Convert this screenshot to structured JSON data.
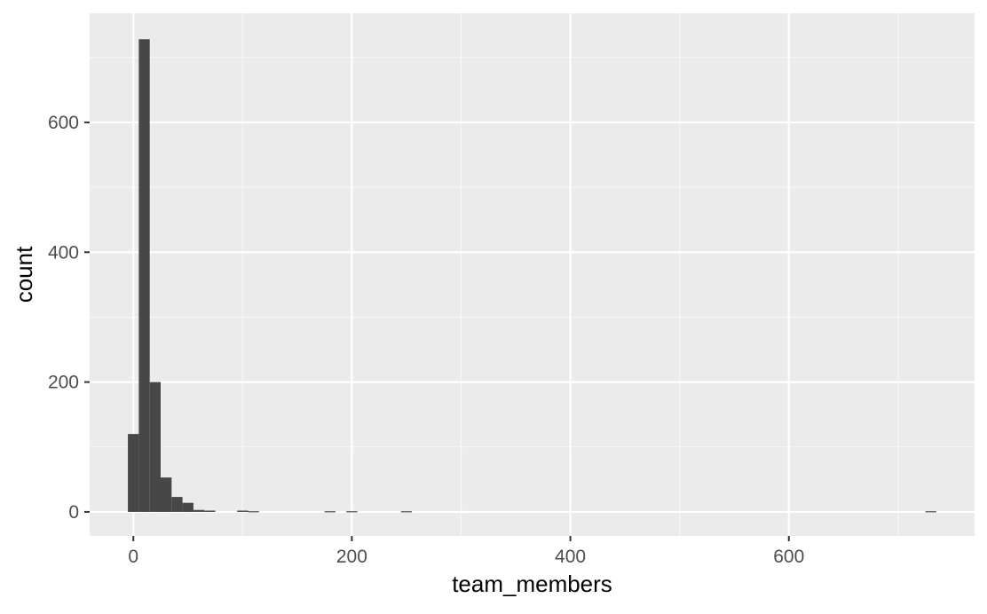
{
  "chart_data": {
    "type": "bar",
    "subtype": "histogram",
    "title": "",
    "xlabel": "team_members",
    "ylabel": "count",
    "xlim": [
      -40,
      770
    ],
    "ylim": [
      -37,
      768
    ],
    "x_ticks": [
      {
        "value": 0,
        "label": "0"
      },
      {
        "value": 200,
        "label": "200"
      },
      {
        "value": 400,
        "label": "400"
      },
      {
        "value": 600,
        "label": "600"
      }
    ],
    "y_ticks": [
      {
        "value": 0,
        "label": "0"
      },
      {
        "value": 200,
        "label": "200"
      },
      {
        "value": 400,
        "label": "400"
      },
      {
        "value": 600,
        "label": "600"
      }
    ],
    "grid": true,
    "legend": "none",
    "bin_width": 10,
    "bins": [
      {
        "x0": -5,
        "x1": 5,
        "count": 120
      },
      {
        "x0": 5,
        "x1": 15,
        "count": 728
      },
      {
        "x0": 15,
        "x1": 25,
        "count": 200
      },
      {
        "x0": 25,
        "x1": 35,
        "count": 53
      },
      {
        "x0": 35,
        "x1": 45,
        "count": 23
      },
      {
        "x0": 45,
        "x1": 55,
        "count": 14
      },
      {
        "x0": 55,
        "x1": 65,
        "count": 3
      },
      {
        "x0": 65,
        "x1": 75,
        "count": 2
      },
      {
        "x0": 95,
        "x1": 105,
        "count": 2
      },
      {
        "x0": 105,
        "x1": 115,
        "count": 1
      },
      {
        "x0": 175,
        "x1": 185,
        "count": 1
      },
      {
        "x0": 195,
        "x1": 205,
        "count": 1
      },
      {
        "x0": 245,
        "x1": 255,
        "count": 1
      },
      {
        "x0": 725,
        "x1": 735,
        "count": 1
      }
    ],
    "colors": {
      "panel_background": "#EBEBEB",
      "grid_major": "#FFFFFF",
      "grid_minor": "#F7F7F7",
      "bar_fill": "#474747",
      "axis_text": "#4D4D4D",
      "axis_title": "#000000"
    }
  }
}
